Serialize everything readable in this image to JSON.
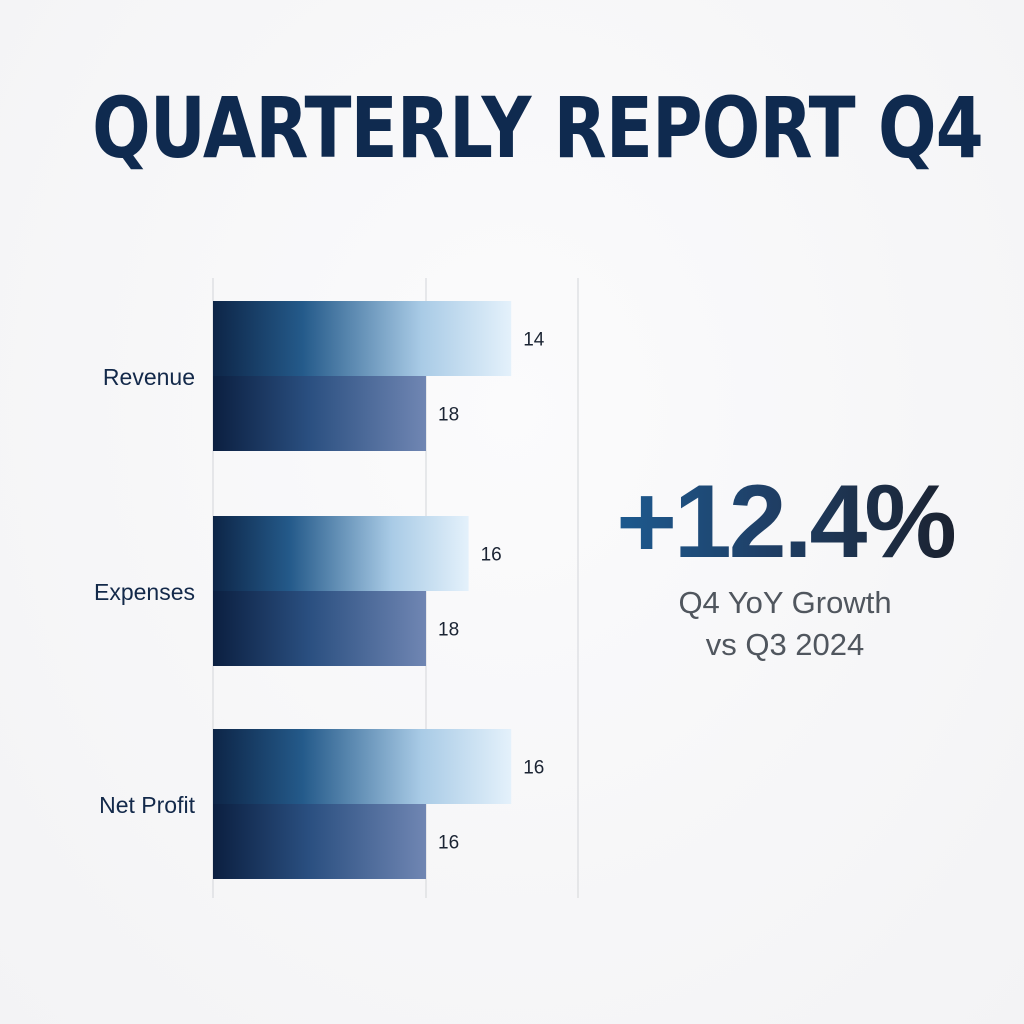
{
  "title": "QUARTERLY REPORT Q4",
  "chart_data": {
    "type": "bar",
    "orientation": "horizontal",
    "categories": [
      "Revenue",
      "Expenses",
      "Net Profit"
    ],
    "series": [
      {
        "values": [
          1.4,
          1.2,
          1.4
        ],
        "value_labels": [
          "14",
          "16",
          "16"
        ],
        "color": "#d7e9f7"
      },
      {
        "values": [
          1.0,
          1.0,
          1.0
        ],
        "value_labels": [
          "18",
          "18",
          "16"
        ],
        "color": "#6f88b6"
      }
    ],
    "xlim": [
      0,
      1.76
    ],
    "grid": true,
    "legend": "none",
    "title": ""
  },
  "kpi": {
    "value": "+12.4%",
    "caption_line1": "Q4 YoY Growth",
    "caption_line2": "vs Q3 2024"
  },
  "colors": {
    "title": "#0f2a4f",
    "bar_dark": "#0d2547",
    "bar_light_end": "#e4f1fb",
    "bar_second_end": "#7086b3"
  }
}
